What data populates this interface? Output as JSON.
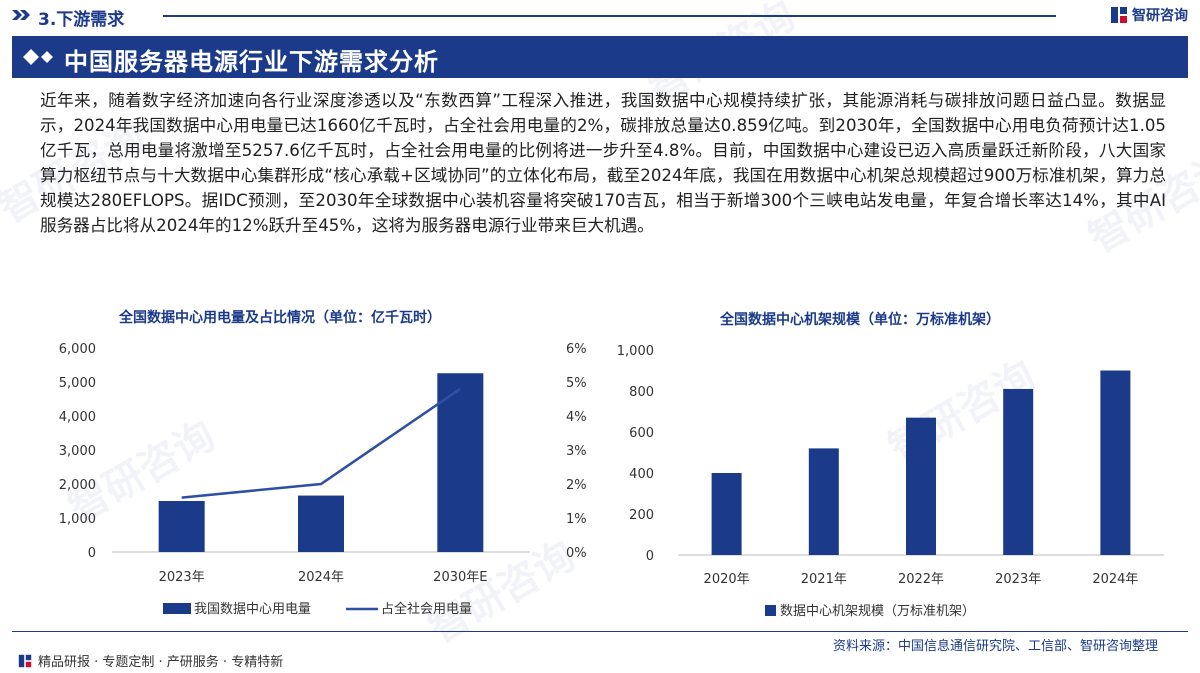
{
  "header": {
    "section": "3.下游需求",
    "logo_text": "智研咨询",
    "title": "中国服务器电源行业下游需求分析"
  },
  "paragraph": "近年来，随着数字经济加速向各行业深度渗透以及“东数西算”工程深入推进，我国数据中心规模持续扩张，其能源消耗与碳排放问题日益凸显。数据显示，2024年我国数据中心用电量已达1660亿千瓦时，占全社会用电量的2%，碳排放总量达0.859亿吨。到2030年，全国数据中心用电负荷预计达1.05亿千瓦，总用电量将激增至5257.6亿千瓦时，占全社会用电量的比例将进一步升至4.8%。目前，中国数据中心建设已迈入高质量跃迁新阶段，八大国家算力枢纽节点与十大数据中心集群形成“核心承载+区域协同”的立体化布局，截至2024年底，我国在用数据中心机架总规模超过900万标准机架，算力总规模达280EFLOPS。据IDC预测，至2030年全球数据中心装机容量将突破170吉瓦，相当于新增300个三峡电站发电量，年复合增长率达14%，其中AI服务器占比将从2024年的12%跃升至45%，这将为服务器电源行业带来巨大机遇。",
  "chart_data": [
    {
      "type": "bar",
      "title": "全国数据中心用电量及占比情况（单位：亿千瓦时）",
      "categories": [
        "2023年",
        "2024年",
        "2030年E"
      ],
      "series": [
        {
          "name": "我国数据中心用电量",
          "type": "bar",
          "axis": "left",
          "values": [
            1500,
            1660,
            5257.6
          ],
          "color": "#1b3a8a"
        },
        {
          "name": "占全社会用电量",
          "type": "line",
          "axis": "right",
          "values": [
            1.6,
            2.0,
            4.8
          ],
          "color": "#2e4fa3"
        }
      ],
      "yticks_left": [
        "6,000",
        "5,000",
        "4,000",
        "3,000",
        "2,000",
        "1,000",
        "0"
      ],
      "ylim_left": [
        0,
        6000
      ],
      "yticks_right": [
        "6%",
        "5%",
        "4%",
        "3%",
        "2%",
        "1%",
        "0%"
      ],
      "ylim_right": [
        0,
        6
      ],
      "legend_position": "bottom"
    },
    {
      "type": "bar",
      "title": "全国数据中心机架规模（单位：万标准机架）",
      "categories": [
        "2020年",
        "2021年",
        "2022年",
        "2023年",
        "2024年"
      ],
      "series": [
        {
          "name": "数据中心机架规模（万标准机架）",
          "values": [
            400,
            520,
            670,
            810,
            900
          ],
          "color": "#1b3a8a"
        }
      ],
      "yticks": [
        "1,000",
        "800",
        "600",
        "400",
        "200",
        "0"
      ],
      "ylim": [
        0,
        1000
      ],
      "legend_position": "bottom"
    }
  ],
  "footer": {
    "source": "资料来源：中国信息通信研究院、工信部、智研咨询整理",
    "tagline": "精品研报 · 专题定制 · 产研服务 · 专精特新"
  },
  "watermark_text": "智研咨询",
  "colors": {
    "brand": "#1b3a8a"
  }
}
